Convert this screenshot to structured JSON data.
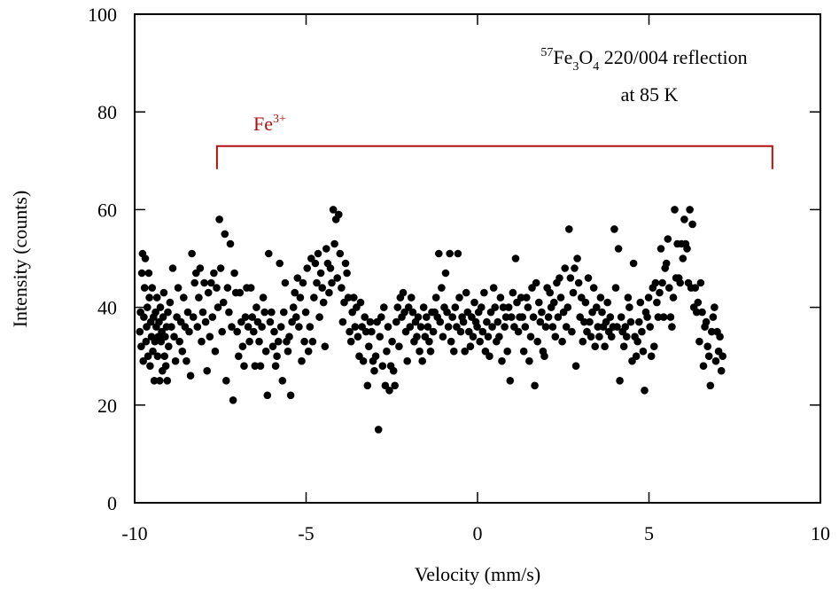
{
  "chart_data": {
    "type": "scatter",
    "xlabel": "Velocity (mm/s)",
    "ylabel": "Intensity (counts)",
    "xlim": [
      -10,
      10
    ],
    "ylim": [
      0,
      100
    ],
    "xticks": [
      "-10",
      "-5",
      "0",
      "5",
      "10"
    ],
    "yticks": [
      "0",
      "20",
      "40",
      "60",
      "80",
      "100"
    ],
    "grid": false,
    "marker_color": "#000000",
    "annotation": {
      "sup": "57",
      "base1": "Fe",
      "sub1": "3",
      "base2": "O",
      "sub2": "4",
      "rest": " 220/004 reflection",
      "line2": "at 85 K"
    },
    "bracket": {
      "label": "Fe",
      "label_sup": "3+",
      "x_start": -7.6,
      "x_end": 8.6,
      "y": 73,
      "color": "#b01010"
    },
    "points": [
      [
        -9.85,
        35
      ],
      [
        -9.83,
        39
      ],
      [
        -9.81,
        32
      ],
      [
        -9.79,
        47
      ],
      [
        -9.77,
        51
      ],
      [
        -9.75,
        29
      ],
      [
        -9.73,
        38
      ],
      [
        -9.71,
        44
      ],
      [
        -9.69,
        50
      ],
      [
        -9.67,
        33
      ],
      [
        -9.65,
        36
      ],
      [
        -9.63,
        40
      ],
      [
        -9.61,
        30
      ],
      [
        -9.59,
        47
      ],
      [
        -9.57,
        42
      ],
      [
        -9.55,
        28
      ],
      [
        -9.53,
        37
      ],
      [
        -9.51,
        34
      ],
      [
        -9.49,
        44
      ],
      [
        -9.47,
        31
      ],
      [
        -9.45,
        38
      ],
      [
        -9.43,
        25
      ],
      [
        -9.41,
        33
      ],
      [
        -9.39,
        39
      ],
      [
        -9.37,
        36
      ],
      [
        -9.35,
        42
      ],
      [
        -9.33,
        30
      ],
      [
        -9.31,
        34
      ],
      [
        -9.29,
        37
      ],
      [
        -9.27,
        25
      ],
      [
        -9.25,
        40
      ],
      [
        -9.23,
        33
      ],
      [
        -9.21,
        35
      ],
      [
        -9.19,
        27
      ],
      [
        -9.17,
        38
      ],
      [
        -9.15,
        43
      ],
      [
        -9.13,
        30
      ],
      [
        -9.11,
        34
      ],
      [
        -9.09,
        28
      ],
      [
        -9.07,
        36
      ],
      [
        -9.05,
        25
      ],
      [
        -9.03,
        39
      ],
      [
        -9.01,
        32
      ],
      [
        -8.97,
        41
      ],
      [
        -8.93,
        36
      ],
      [
        -8.89,
        48
      ],
      [
        -8.85,
        34
      ],
      [
        -8.81,
        29
      ],
      [
        -8.77,
        38
      ],
      [
        -8.73,
        44
      ],
      [
        -8.69,
        33
      ],
      [
        -8.65,
        37
      ],
      [
        -8.61,
        31
      ],
      [
        -8.57,
        42
      ],
      [
        -8.53,
        36
      ],
      [
        -8.49,
        29
      ],
      [
        -8.45,
        39
      ],
      [
        -8.41,
        35
      ],
      [
        -8.37,
        26
      ],
      [
        -8.33,
        51
      ],
      [
        -8.29,
        38
      ],
      [
        -8.25,
        45
      ],
      [
        -8.21,
        47
      ],
      [
        -8.17,
        36
      ],
      [
        -8.13,
        42
      ],
      [
        -8.09,
        48
      ],
      [
        -8.05,
        33
      ],
      [
        -8.01,
        39
      ],
      [
        -7.97,
        45
      ],
      [
        -7.93,
        37
      ],
      [
        -7.89,
        27
      ],
      [
        -7.85,
        43
      ],
      [
        -7.81,
        34
      ],
      [
        -7.77,
        45
      ],
      [
        -7.73,
        38
      ],
      [
        -7.69,
        47
      ],
      [
        -7.65,
        31
      ],
      [
        -7.61,
        44
      ],
      [
        -7.57,
        40
      ],
      [
        -7.53,
        58
      ],
      [
        -7.49,
        48
      ],
      [
        -7.45,
        35
      ],
      [
        -7.41,
        41
      ],
      [
        -7.37,
        55
      ],
      [
        -7.33,
        25
      ],
      [
        -7.29,
        44
      ],
      [
        -7.25,
        39
      ],
      [
        -7.21,
        53
      ],
      [
        -7.17,
        36
      ],
      [
        -7.13,
        21
      ],
      [
        -7.09,
        47
      ],
      [
        -7.05,
        43
      ],
      [
        -7.01,
        35
      ],
      [
        -6.97,
        30
      ],
      [
        -6.93,
        43
      ],
      [
        -6.89,
        37
      ],
      [
        -6.85,
        32
      ],
      [
        -6.81,
        28
      ],
      [
        -6.77,
        38
      ],
      [
        -6.73,
        44
      ],
      [
        -6.69,
        36
      ],
      [
        -6.65,
        33
      ],
      [
        -6.61,
        44
      ],
      [
        -6.57,
        38
      ],
      [
        -6.53,
        35
      ],
      [
        -6.49,
        28
      ],
      [
        -6.45,
        40
      ],
      [
        -6.41,
        37
      ],
      [
        -6.37,
        33
      ],
      [
        -6.33,
        28
      ],
      [
        -6.29,
        36
      ],
      [
        -6.25,
        42
      ],
      [
        -6.21,
        39
      ],
      [
        -6.17,
        31
      ],
      [
        -6.13,
        22
      ],
      [
        -6.09,
        51
      ],
      [
        -6.05,
        37
      ],
      [
        -6.01,
        39
      ],
      [
        -5.97,
        32
      ],
      [
        -5.93,
        35
      ],
      [
        -5.89,
        28
      ],
      [
        -5.85,
        30
      ],
      [
        -5.81,
        33
      ],
      [
        -5.77,
        49
      ],
      [
        -5.73,
        36
      ],
      [
        -5.69,
        25
      ],
      [
        -5.65,
        39
      ],
      [
        -5.61,
        45
      ],
      [
        -5.57,
        33
      ],
      [
        -5.53,
        31
      ],
      [
        -5.49,
        34
      ],
      [
        -5.45,
        22
      ],
      [
        -5.41,
        37
      ],
      [
        -5.37,
        40
      ],
      [
        -5.33,
        43
      ],
      [
        -5.29,
        38
      ],
      [
        -5.25,
        46
      ],
      [
        -5.21,
        36
      ],
      [
        -5.17,
        42
      ],
      [
        -5.13,
        29
      ],
      [
        -5.09,
        45
      ],
      [
        -5.05,
        33
      ],
      [
        -5.01,
        39
      ],
      [
        -4.97,
        48
      ],
      [
        -4.93,
        31
      ],
      [
        -4.89,
        36
      ],
      [
        -4.85,
        50
      ],
      [
        -4.81,
        33
      ],
      [
        -4.77,
        42
      ],
      [
        -4.73,
        49
      ],
      [
        -4.69,
        45
      ],
      [
        -4.65,
        51
      ],
      [
        -4.61,
        38
      ],
      [
        -4.57,
        47
      ],
      [
        -4.53,
        44
      ],
      [
        -4.49,
        41
      ],
      [
        -4.45,
        32
      ],
      [
        -4.41,
        52
      ],
      [
        -4.37,
        49
      ],
      [
        -4.33,
        43
      ],
      [
        -4.29,
        48
      ],
      [
        -4.25,
        45
      ],
      [
        -4.21,
        60
      ],
      [
        -4.17,
        53
      ],
      [
        -4.13,
        58
      ],
      [
        -4.09,
        46
      ],
      [
        -4.05,
        59
      ],
      [
        -4.01,
        51
      ],
      [
        -3.97,
        44
      ],
      [
        -3.93,
        37
      ],
      [
        -3.89,
        41
      ],
      [
        -3.85,
        49
      ],
      [
        -3.81,
        47
      ],
      [
        -3.77,
        42
      ],
      [
        -3.73,
        35
      ],
      [
        -3.69,
        33
      ],
      [
        -3.65,
        39
      ],
      [
        -3.61,
        42
      ],
      [
        -3.57,
        36
      ],
      [
        -3.53,
        40
      ],
      [
        -3.49,
        34
      ],
      [
        -3.45,
        30
      ],
      [
        -3.41,
        41
      ],
      [
        -3.37,
        36
      ],
      [
        -3.33,
        29
      ],
      [
        -3.29,
        38
      ],
      [
        -3.25,
        35
      ],
      [
        -3.21,
        24
      ],
      [
        -3.17,
        32
      ],
      [
        -3.13,
        37
      ],
      [
        -3.09,
        35
      ],
      [
        -3.05,
        29
      ],
      [
        -3.01,
        27
      ],
      [
        -2.97,
        30
      ],
      [
        -2.93,
        37
      ],
      [
        -2.89,
        15
      ],
      [
        -2.85,
        34
      ],
      [
        -2.81,
        38
      ],
      [
        -2.77,
        28
      ],
      [
        -2.73,
        40
      ],
      [
        -2.69,
        24
      ],
      [
        -2.65,
        31
      ],
      [
        -2.61,
        36
      ],
      [
        -2.57,
        23
      ],
      [
        -2.53,
        28
      ],
      [
        -2.49,
        33
      ],
      [
        -2.45,
        27
      ],
      [
        -2.41,
        24
      ],
      [
        -2.37,
        37
      ],
      [
        -2.33,
        40
      ],
      [
        -2.29,
        32
      ],
      [
        -2.25,
        42
      ],
      [
        -2.21,
        38
      ],
      [
        -2.17,
        43
      ],
      [
        -2.13,
        39
      ],
      [
        -2.09,
        35
      ],
      [
        -2.05,
        29
      ],
      [
        -2.01,
        40
      ],
      [
        -1.97,
        36
      ],
      [
        -1.93,
        42
      ],
      [
        -1.89,
        39
      ],
      [
        -1.85,
        33
      ],
      [
        -1.81,
        37
      ],
      [
        -1.77,
        34
      ],
      [
        -1.73,
        38
      ],
      [
        -1.69,
        31
      ],
      [
        -1.65,
        36
      ],
      [
        -1.61,
        29
      ],
      [
        -1.57,
        40
      ],
      [
        -1.53,
        34
      ],
      [
        -1.49,
        38
      ],
      [
        -1.45,
        36
      ],
      [
        -1.41,
        33
      ],
      [
        -1.37,
        31
      ],
      [
        -1.33,
        39
      ],
      [
        -1.29,
        35
      ],
      [
        -1.25,
        39
      ],
      [
        -1.21,
        42
      ],
      [
        -1.17,
        38
      ],
      [
        -1.13,
        51
      ],
      [
        -1.09,
        37
      ],
      [
        -1.05,
        44
      ],
      [
        -1.01,
        34
      ],
      [
        -0.97,
        40
      ],
      [
        -0.93,
        47
      ],
      [
        -0.89,
        39
      ],
      [
        -0.85,
        36
      ],
      [
        -0.81,
        51
      ],
      [
        -0.77,
        33
      ],
      [
        -0.73,
        38
      ],
      [
        -0.69,
        31
      ],
      [
        -0.65,
        40
      ],
      [
        -0.61,
        36
      ],
      [
        -0.57,
        51
      ],
      [
        -0.53,
        42
      ],
      [
        -0.49,
        35
      ],
      [
        -0.45,
        38
      ],
      [
        -0.41,
        37
      ],
      [
        -0.37,
        31
      ],
      [
        -0.33,
        43
      ],
      [
        -0.29,
        39
      ],
      [
        -0.25,
        35
      ],
      [
        -0.21,
        32
      ],
      [
        -0.17,
        38
      ],
      [
        -0.13,
        34
      ],
      [
        -0.09,
        41
      ],
      [
        -0.05,
        37
      ],
      [
        -0.01,
        36
      ],
      [
        0.03,
        39
      ],
      [
        0.07,
        33
      ],
      [
        0.11,
        40
      ],
      [
        0.15,
        35
      ],
      [
        0.19,
        43
      ],
      [
        0.23,
        31
      ],
      [
        0.27,
        37
      ],
      [
        0.31,
        34
      ],
      [
        0.35,
        30
      ],
      [
        0.39,
        39
      ],
      [
        0.43,
        36
      ],
      [
        0.47,
        44
      ],
      [
        0.51,
        40
      ],
      [
        0.55,
        33
      ],
      [
        0.59,
        37
      ],
      [
        0.63,
        34
      ],
      [
        0.67,
        42
      ],
      [
        0.71,
        29
      ],
      [
        0.75,
        40
      ],
      [
        0.79,
        36
      ],
      [
        0.83,
        38
      ],
      [
        0.87,
        31
      ],
      [
        0.91,
        40
      ],
      [
        0.95,
        25
      ],
      [
        0.99,
        38
      ],
      [
        1.03,
        43
      ],
      [
        1.07,
        36
      ],
      [
        1.11,
        50
      ],
      [
        1.15,
        41
      ],
      [
        1.19,
        35
      ],
      [
        1.23,
        38
      ],
      [
        1.27,
        42
      ],
      [
        1.31,
        38
      ],
      [
        1.35,
        31
      ],
      [
        1.39,
        36
      ],
      [
        1.43,
        42
      ],
      [
        1.47,
        40
      ],
      [
        1.51,
        29
      ],
      [
        1.55,
        34
      ],
      [
        1.59,
        44
      ],
      [
        1.63,
        38
      ],
      [
        1.67,
        24
      ],
      [
        1.71,
        45
      ],
      [
        1.75,
        33
      ],
      [
        1.79,
        41
      ],
      [
        1.83,
        37
      ],
      [
        1.87,
        39
      ],
      [
        1.91,
        31
      ],
      [
        1.95,
        30
      ],
      [
        1.99,
        36
      ],
      [
        2.03,
        44
      ],
      [
        2.07,
        38
      ],
      [
        2.11,
        43
      ],
      [
        2.15,
        40
      ],
      [
        2.19,
        36
      ],
      [
        2.23,
        41
      ],
      [
        2.27,
        34
      ],
      [
        2.31,
        45
      ],
      [
        2.35,
        38
      ],
      [
        2.39,
        46
      ],
      [
        2.43,
        42
      ],
      [
        2.47,
        33
      ],
      [
        2.51,
        39
      ],
      [
        2.55,
        48
      ],
      [
        2.59,
        36
      ],
      [
        2.63,
        40
      ],
      [
        2.67,
        56
      ],
      [
        2.71,
        46
      ],
      [
        2.75,
        35
      ],
      [
        2.79,
        43
      ],
      [
        2.83,
        48
      ],
      [
        2.87,
        28
      ],
      [
        2.91,
        50
      ],
      [
        2.95,
        45
      ],
      [
        2.99,
        38
      ],
      [
        3.03,
        42
      ],
      [
        3.07,
        33
      ],
      [
        3.11,
        37
      ],
      [
        3.15,
        41
      ],
      [
        3.19,
        35
      ],
      [
        3.23,
        46
      ],
      [
        3.27,
        37
      ],
      [
        3.31,
        34
      ],
      [
        3.35,
        39
      ],
      [
        3.39,
        44
      ],
      [
        3.43,
        32
      ],
      [
        3.47,
        40
      ],
      [
        3.51,
        36
      ],
      [
        3.55,
        34
      ],
      [
        3.59,
        42
      ],
      [
        3.63,
        39
      ],
      [
        3.67,
        36
      ],
      [
        3.71,
        32
      ],
      [
        3.75,
        37
      ],
      [
        3.79,
        41
      ],
      [
        3.83,
        35
      ],
      [
        3.87,
        38
      ],
      [
        3.91,
        34
      ],
      [
        3.95,
        36
      ],
      [
        3.99,
        56
      ],
      [
        4.03,
        44
      ],
      [
        4.07,
        36
      ],
      [
        4.11,
        52
      ],
      [
        4.15,
        25
      ],
      [
        4.19,
        38
      ],
      [
        4.23,
        35
      ],
      [
        4.27,
        32
      ],
      [
        4.31,
        36
      ],
      [
        4.35,
        34
      ],
      [
        4.39,
        42
      ],
      [
        4.43,
        40
      ],
      [
        4.47,
        37
      ],
      [
        4.51,
        29
      ],
      [
        4.55,
        49
      ],
      [
        4.59,
        34
      ],
      [
        4.63,
        30
      ],
      [
        4.67,
        33
      ],
      [
        4.71,
        37
      ],
      [
        4.75,
        41
      ],
      [
        4.79,
        35
      ],
      [
        4.83,
        31
      ],
      [
        4.87,
        23
      ],
      [
        4.91,
        39
      ],
      [
        4.95,
        38
      ],
      [
        4.99,
        42
      ],
      [
        5.03,
        36
      ],
      [
        5.07,
        30
      ],
      [
        5.11,
        44
      ],
      [
        5.15,
        32
      ],
      [
        5.19,
        45
      ],
      [
        5.23,
        41
      ],
      [
        5.27,
        38
      ],
      [
        5.31,
        43
      ],
      [
        5.35,
        52
      ],
      [
        5.39,
        45
      ],
      [
        5.43,
        38
      ],
      [
        5.47,
        48
      ],
      [
        5.51,
        49
      ],
      [
        5.55,
        54
      ],
      [
        5.59,
        44
      ],
      [
        5.63,
        38
      ],
      [
        5.67,
        36
      ],
      [
        5.71,
        42
      ],
      [
        5.75,
        60
      ],
      [
        5.79,
        46
      ],
      [
        5.83,
        53
      ],
      [
        5.87,
        46
      ],
      [
        5.91,
        45
      ],
      [
        5.95,
        53
      ],
      [
        5.99,
        50
      ],
      [
        6.03,
        58
      ],
      [
        6.07,
        53
      ],
      [
        6.11,
        52
      ],
      [
        6.15,
        45
      ],
      [
        6.19,
        60
      ],
      [
        6.23,
        44
      ],
      [
        6.27,
        57
      ],
      [
        6.31,
        40
      ],
      [
        6.35,
        44
      ],
      [
        6.39,
        39
      ],
      [
        6.43,
        41
      ],
      [
        6.47,
        33
      ],
      [
        6.51,
        45
      ],
      [
        6.55,
        39
      ],
      [
        6.59,
        28
      ],
      [
        6.63,
        36
      ],
      [
        6.67,
        37
      ],
      [
        6.71,
        32
      ],
      [
        6.75,
        30
      ],
      [
        6.79,
        24
      ],
      [
        6.83,
        35
      ],
      [
        6.87,
        38
      ],
      [
        6.91,
        40
      ],
      [
        6.95,
        29
      ],
      [
        6.99,
        35
      ],
      [
        7.03,
        31
      ],
      [
        7.07,
        34
      ],
      [
        7.11,
        27
      ],
      [
        7.15,
        30
      ]
    ]
  }
}
